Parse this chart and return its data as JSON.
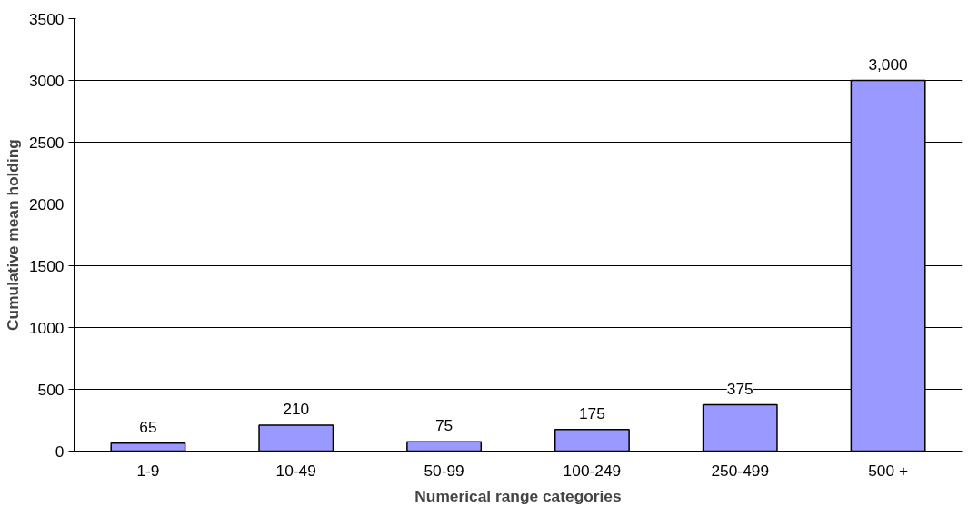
{
  "chart_data": {
    "type": "bar",
    "xlabel": "Numerical range categories",
    "ylabel": "Cumulative mean holding",
    "categories": [
      "1-9",
      "10-49",
      "50-99",
      "100-249",
      "250-499",
      "500 +"
    ],
    "values": [
      65,
      210,
      75,
      175,
      375,
      3000
    ],
    "value_labels": [
      "65",
      "210",
      "75",
      "175",
      "375",
      "3,000"
    ],
    "color": "#9999ff",
    "ylim": [
      0,
      3500
    ],
    "yticks": [
      0,
      500,
      1000,
      1500,
      2000,
      2500,
      3000,
      3500
    ],
    "grid": "y"
  }
}
